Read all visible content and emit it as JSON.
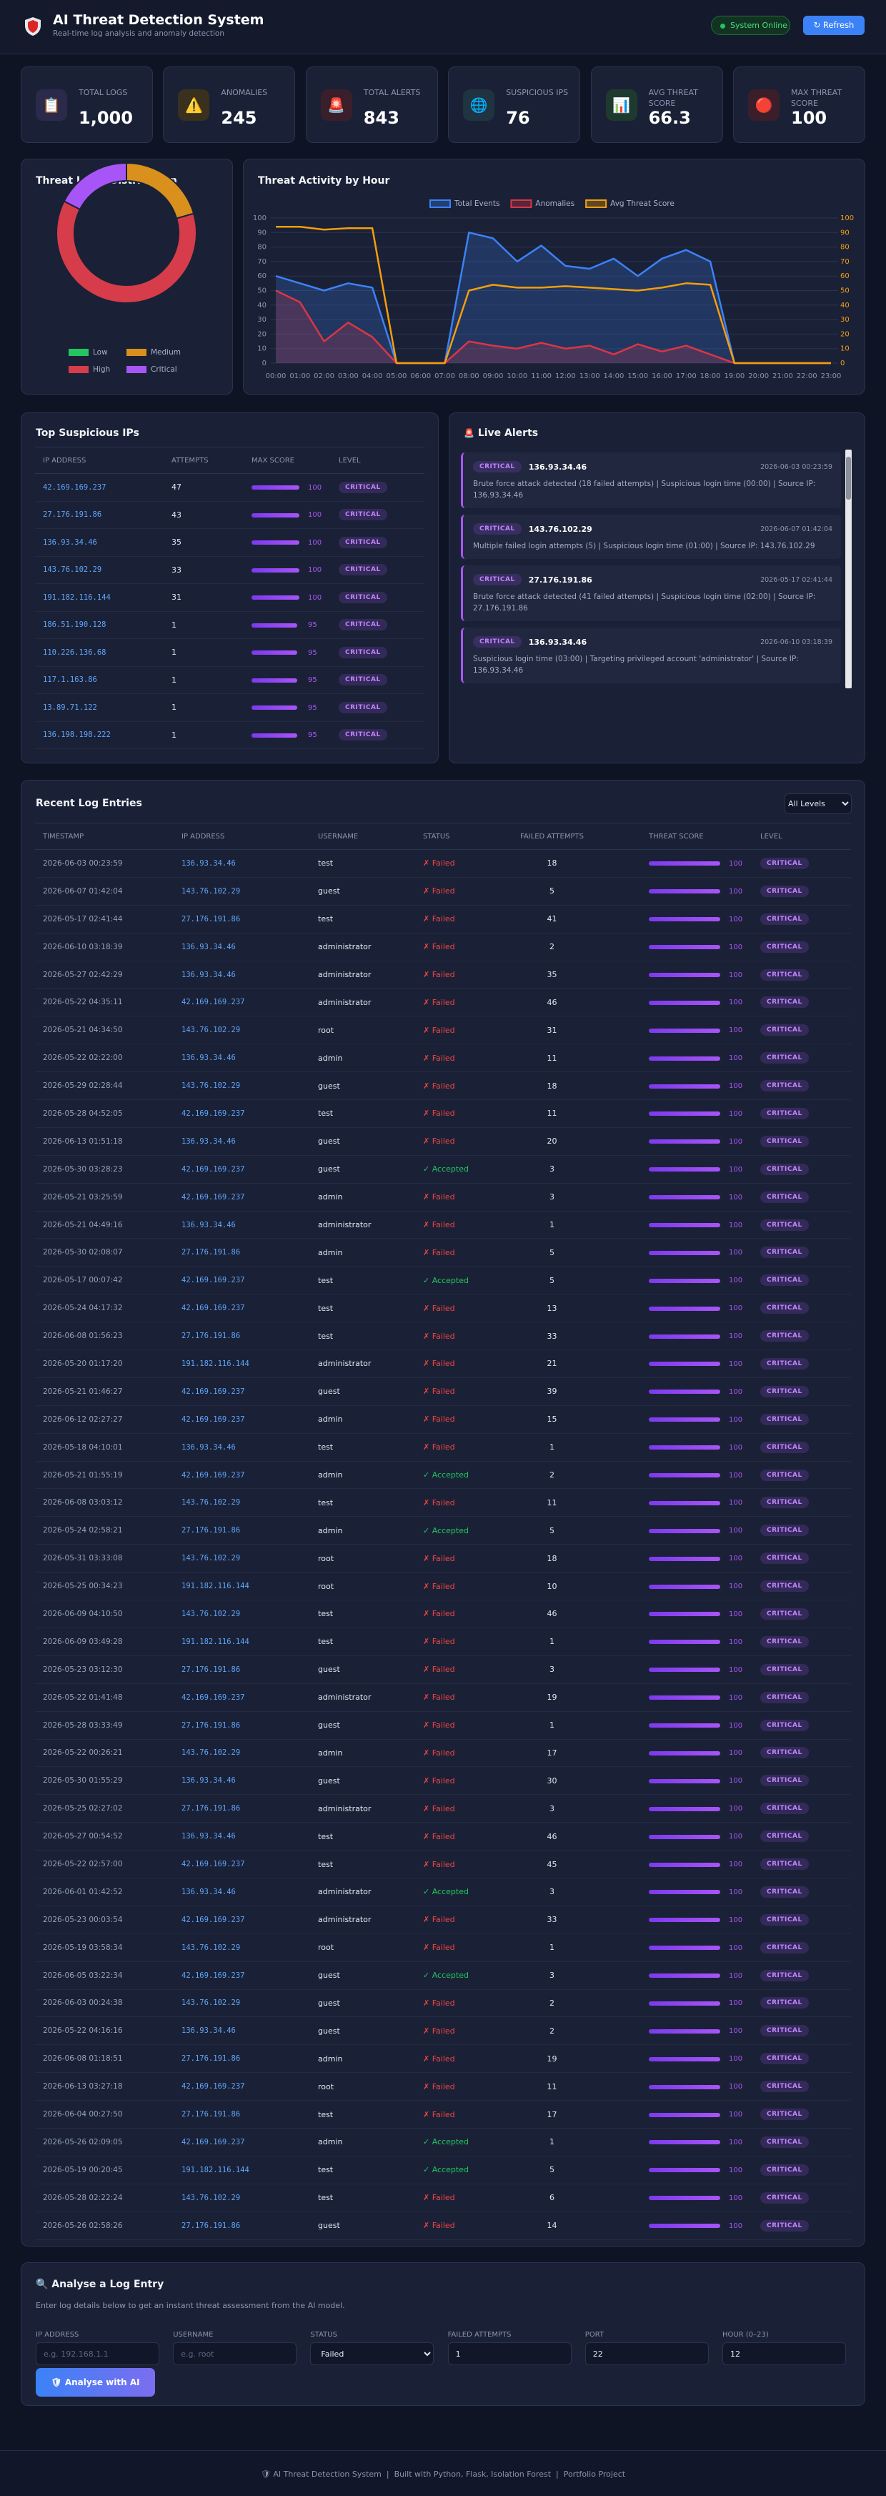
{
  "header": {
    "title": "AI Threat Detection System",
    "subtitle": "Real-time log analysis and anomaly detection",
    "status": "System Online",
    "refresh": "↻ Refresh"
  },
  "stats": [
    {
      "icon": "📋",
      "label": "TOTAL LOGS",
      "value": "1,000",
      "tint": "#2b2a4a"
    },
    {
      "icon": "⚠️",
      "label": "ANOMALIES",
      "value": 245,
      "tint": "#3a301e"
    },
    {
      "icon": "🚨",
      "label": "TOTAL ALERTS",
      "value": 843,
      "tint": "#3a1f2a"
    },
    {
      "icon": "🌐",
      "label": "SUSPICIOUS IPS",
      "value": 76,
      "tint": "#1f3340"
    },
    {
      "icon": "📊",
      "label": "AVG THREAT SCORE",
      "value": 66.3,
      "tint": "#1e3a2e"
    },
    {
      "icon": "🔴",
      "label": "MAX THREAT SCORE",
      "value": 100,
      "tint": "#3a1f2a"
    }
  ],
  "chart_data": [
    {
      "type": "doughnut",
      "title": "Threat Level Distribution",
      "categories": [
        "Low",
        "Medium",
        "High",
        "Critical"
      ],
      "values": [
        0,
        205,
        620,
        175
      ],
      "colors": [
        "#22c55e",
        "#d9901c",
        "#d63c4a",
        "#a855f7"
      ]
    },
    {
      "type": "line",
      "title": "Threat Activity by Hour",
      "categories": [
        "00:00",
        "01:00",
        "02:00",
        "03:00",
        "04:00",
        "05:00",
        "06:00",
        "07:00",
        "08:00",
        "09:00",
        "10:00",
        "11:00",
        "12:00",
        "13:00",
        "14:00",
        "15:00",
        "16:00",
        "17:00",
        "18:00",
        "19:00",
        "20:00",
        "21:00",
        "22:00",
        "23:00"
      ],
      "series": [
        {
          "name": "Total Events",
          "color": "#3b82f6",
          "fill": true,
          "values": [
            60,
            55,
            50,
            55,
            52,
            0,
            0,
            0,
            90,
            86,
            70,
            81,
            67,
            65,
            72,
            60,
            72,
            78,
            70,
            0,
            0,
            0,
            0,
            0
          ]
        },
        {
          "name": "Anomalies",
          "color": "#dc3545",
          "fill": true,
          "values": [
            50,
            42,
            15,
            28,
            18,
            0,
            0,
            0,
            15,
            12,
            10,
            14,
            10,
            12,
            6,
            13,
            8,
            12,
            6,
            0,
            0,
            0,
            0,
            0
          ]
        },
        {
          "name": "Avg Threat Score",
          "color": "#f59e0b",
          "axis": "y2",
          "values": [
            94,
            94,
            92,
            93,
            93,
            0,
            0,
            0,
            50,
            54,
            52,
            52,
            53,
            52,
            51,
            50,
            52,
            55,
            54,
            0,
            0,
            0,
            0,
            0
          ]
        }
      ],
      "ylim": [
        0,
        100
      ],
      "yticks": [
        0,
        10,
        20,
        30,
        40,
        50,
        60,
        70,
        80,
        90,
        100
      ],
      "y2lim": [
        0,
        100
      ],
      "y2ticks": [
        0,
        10,
        20,
        30,
        40,
        50,
        60,
        70,
        80,
        90,
        100
      ],
      "grid": true,
      "legend": "top"
    }
  ],
  "top_ips": {
    "title": "Top Suspicious IPs",
    "columns": [
      "IP ADDRESS",
      "ATTEMPTS",
      "MAX SCORE",
      "LEVEL"
    ],
    "rows": [
      [
        "42.169.169.237",
        47,
        100,
        "CRITICAL"
      ],
      [
        "27.176.191.86",
        43,
        100,
        "CRITICAL"
      ],
      [
        "136.93.34.46",
        35,
        100,
        "CRITICAL"
      ],
      [
        "143.76.102.29",
        33,
        100,
        "CRITICAL"
      ],
      [
        "191.182.116.144",
        31,
        100,
        "CRITICAL"
      ],
      [
        "186.51.190.128",
        1,
        95,
        "CRITICAL"
      ],
      [
        "110.226.136.68",
        1,
        95,
        "CRITICAL"
      ],
      [
        "117.1.163.86",
        1,
        95,
        "CRITICAL"
      ],
      [
        "13.89.71.122",
        1,
        95,
        "CRITICAL"
      ],
      [
        "136.198.198.222",
        1,
        95,
        "CRITICAL"
      ]
    ]
  },
  "alerts": {
    "icon": "🚨",
    "title": "Live Alerts",
    "items": [
      {
        "level": "CRITICAL",
        "ip": "136.93.34.46",
        "time": "2026-06-03 00:23:59",
        "message": "Brute force attack detected (18 failed attempts) | Suspicious login time (00:00) | Source IP: 136.93.34.46"
      },
      {
        "level": "CRITICAL",
        "ip": "143.76.102.29",
        "time": "2026-06-07 01:42:04",
        "message": "Multiple failed login attempts (5) | Suspicious login time (01:00) | Source IP: 143.76.102.29"
      },
      {
        "level": "CRITICAL",
        "ip": "27.176.191.86",
        "time": "2026-05-17 02:41:44",
        "message": "Brute force attack detected (41 failed attempts) | Suspicious login time (02:00) | Source IP: 27.176.191.86"
      },
      {
        "level": "CRITICAL",
        "ip": "136.93.34.46",
        "time": "2026-06-10 03:18:39",
        "message": "Suspicious login time (03:00) | Targeting privileged account 'administrator' | Source IP: 136.93.34.46"
      }
    ]
  },
  "logs": {
    "title": "Recent Log Entries",
    "filter": "All Levels",
    "columns": [
      "TIMESTAMP",
      "IP ADDRESS",
      "USERNAME",
      "STATUS",
      "FAILED ATTEMPTS",
      "THREAT SCORE",
      "LEVEL"
    ],
    "status_colors": {
      "✗ Failed": "#ef4444",
      "✓ Accepted": "#22c55e"
    },
    "rows": [
      [
        "2026-06-03 00:23:59",
        "136.93.34.46",
        "test",
        "✗ Failed",
        18,
        100,
        "CRITICAL"
      ],
      [
        "2026-06-07 01:42:04",
        "143.76.102.29",
        "guest",
        "✗ Failed",
        5,
        100,
        "CRITICAL"
      ],
      [
        "2026-05-17 02:41:44",
        "27.176.191.86",
        "test",
        "✗ Failed",
        41,
        100,
        "CRITICAL"
      ],
      [
        "2026-06-10 03:18:39",
        "136.93.34.46",
        "administrator",
        "✗ Failed",
        2,
        100,
        "CRITICAL"
      ],
      [
        "2026-05-27 02:42:29",
        "136.93.34.46",
        "administrator",
        "✗ Failed",
        35,
        100,
        "CRITICAL"
      ],
      [
        "2026-05-22 04:35:11",
        "42.169.169.237",
        "administrator",
        "✗ Failed",
        46,
        100,
        "CRITICAL"
      ],
      [
        "2026-05-21 04:34:50",
        "143.76.102.29",
        "root",
        "✗ Failed",
        31,
        100,
        "CRITICAL"
      ],
      [
        "2026-05-22 02:22:00",
        "136.93.34.46",
        "admin",
        "✗ Failed",
        11,
        100,
        "CRITICAL"
      ],
      [
        "2026-05-29 02:28:44",
        "143.76.102.29",
        "guest",
        "✗ Failed",
        18,
        100,
        "CRITICAL"
      ],
      [
        "2026-05-28 04:52:05",
        "42.169.169.237",
        "test",
        "✗ Failed",
        11,
        100,
        "CRITICAL"
      ],
      [
        "2026-06-13 01:51:18",
        "136.93.34.46",
        "guest",
        "✗ Failed",
        20,
        100,
        "CRITICAL"
      ],
      [
        "2026-05-30 03:28:23",
        "42.169.169.237",
        "guest",
        "✓ Accepted",
        3,
        100,
        "CRITICAL"
      ],
      [
        "2026-05-21 03:25:59",
        "42.169.169.237",
        "admin",
        "✗ Failed",
        3,
        100,
        "CRITICAL"
      ],
      [
        "2026-05-21 04:49:16",
        "136.93.34.46",
        "administrator",
        "✗ Failed",
        1,
        100,
        "CRITICAL"
      ],
      [
        "2026-05-30 02:08:07",
        "27.176.191.86",
        "admin",
        "✗ Failed",
        5,
        100,
        "CRITICAL"
      ],
      [
        "2026-05-17 00:07:42",
        "42.169.169.237",
        "test",
        "✓ Accepted",
        5,
        100,
        "CRITICAL"
      ],
      [
        "2026-05-24 04:17:32",
        "42.169.169.237",
        "test",
        "✗ Failed",
        13,
        100,
        "CRITICAL"
      ],
      [
        "2026-06-08 01:56:23",
        "27.176.191.86",
        "test",
        "✗ Failed",
        33,
        100,
        "CRITICAL"
      ],
      [
        "2026-05-20 01:17:20",
        "191.182.116.144",
        "administrator",
        "✗ Failed",
        21,
        100,
        "CRITICAL"
      ],
      [
        "2026-05-21 01:46:27",
        "42.169.169.237",
        "guest",
        "✗ Failed",
        39,
        100,
        "CRITICAL"
      ],
      [
        "2026-06-12 02:27:27",
        "42.169.169.237",
        "admin",
        "✗ Failed",
        15,
        100,
        "CRITICAL"
      ],
      [
        "2026-05-18 04:10:01",
        "136.93.34.46",
        "test",
        "✗ Failed",
        1,
        100,
        "CRITICAL"
      ],
      [
        "2026-05-21 01:55:19",
        "42.169.169.237",
        "admin",
        "✓ Accepted",
        2,
        100,
        "CRITICAL"
      ],
      [
        "2026-06-08 03:03:12",
        "143.76.102.29",
        "test",
        "✗ Failed",
        11,
        100,
        "CRITICAL"
      ],
      [
        "2026-05-24 02:58:21",
        "27.176.191.86",
        "admin",
        "✓ Accepted",
        5,
        100,
        "CRITICAL"
      ],
      [
        "2026-05-31 03:33:08",
        "143.76.102.29",
        "root",
        "✗ Failed",
        18,
        100,
        "CRITICAL"
      ],
      [
        "2026-05-25 00:34:23",
        "191.182.116.144",
        "root",
        "✗ Failed",
        10,
        100,
        "CRITICAL"
      ],
      [
        "2026-06-09 04:10:50",
        "143.76.102.29",
        "test",
        "✗ Failed",
        46,
        100,
        "CRITICAL"
      ],
      [
        "2026-06-09 03:49:28",
        "191.182.116.144",
        "test",
        "✗ Failed",
        1,
        100,
        "CRITICAL"
      ],
      [
        "2026-05-23 03:12:30",
        "27.176.191.86",
        "guest",
        "✗ Failed",
        3,
        100,
        "CRITICAL"
      ],
      [
        "2026-05-22 01:41:48",
        "42.169.169.237",
        "administrator",
        "✗ Failed",
        19,
        100,
        "CRITICAL"
      ],
      [
        "2026-05-28 03:33:49",
        "27.176.191.86",
        "guest",
        "✗ Failed",
        1,
        100,
        "CRITICAL"
      ],
      [
        "2026-05-22 00:26:21",
        "143.76.102.29",
        "admin",
        "✗ Failed",
        17,
        100,
        "CRITICAL"
      ],
      [
        "2026-05-30 01:55:29",
        "136.93.34.46",
        "guest",
        "✗ Failed",
        30,
        100,
        "CRITICAL"
      ],
      [
        "2026-05-25 02:27:02",
        "27.176.191.86",
        "administrator",
        "✗ Failed",
        3,
        100,
        "CRITICAL"
      ],
      [
        "2026-05-27 00:54:52",
        "136.93.34.46",
        "test",
        "✗ Failed",
        46,
        100,
        "CRITICAL"
      ],
      [
        "2026-05-22 02:57:00",
        "42.169.169.237",
        "test",
        "✗ Failed",
        45,
        100,
        "CRITICAL"
      ],
      [
        "2026-06-01 01:42:52",
        "136.93.34.46",
        "administrator",
        "✓ Accepted",
        3,
        100,
        "CRITICAL"
      ],
      [
        "2026-05-23 00:03:54",
        "42.169.169.237",
        "administrator",
        "✗ Failed",
        33,
        100,
        "CRITICAL"
      ],
      [
        "2026-05-19 03:58:34",
        "143.76.102.29",
        "root",
        "✗ Failed",
        1,
        100,
        "CRITICAL"
      ],
      [
        "2026-06-05 03:22:34",
        "42.169.169.237",
        "guest",
        "✓ Accepted",
        3,
        100,
        "CRITICAL"
      ],
      [
        "2026-06-03 00:24:38",
        "143.76.102.29",
        "guest",
        "✗ Failed",
        2,
        100,
        "CRITICAL"
      ],
      [
        "2026-05-22 04:16:16",
        "136.93.34.46",
        "guest",
        "✗ Failed",
        2,
        100,
        "CRITICAL"
      ],
      [
        "2026-06-08 01:18:51",
        "27.176.191.86",
        "admin",
        "✗ Failed",
        19,
        100,
        "CRITICAL"
      ],
      [
        "2026-06-13 03:27:18",
        "42.169.169.237",
        "root",
        "✗ Failed",
        11,
        100,
        "CRITICAL"
      ],
      [
        "2026-06-04 00:27:50",
        "27.176.191.86",
        "test",
        "✗ Failed",
        17,
        100,
        "CRITICAL"
      ],
      [
        "2026-05-26 02:09:05",
        "42.169.169.237",
        "admin",
        "✓ Accepted",
        1,
        100,
        "CRITICAL"
      ],
      [
        "2026-05-19 00:20:45",
        "191.182.116.144",
        "test",
        "✓ Accepted",
        5,
        100,
        "CRITICAL"
      ],
      [
        "2026-05-28 02:22:24",
        "143.76.102.29",
        "test",
        "✗ Failed",
        6,
        100,
        "CRITICAL"
      ],
      [
        "2026-05-26 02:58:26",
        "27.176.191.86",
        "guest",
        "✗ Failed",
        14,
        100,
        "CRITICAL"
      ]
    ]
  },
  "form": {
    "title": "🔍 Analyse a Log Entry",
    "description": "Enter log details below to get an instant threat assessment from the AI model.",
    "fields": [
      {
        "label": "IP ADDRESS",
        "placeholder": "e.g. 192.168.1.1"
      },
      {
        "label": "USERNAME",
        "placeholder": "e.g. root"
      },
      {
        "label": "STATUS",
        "value": "Failed"
      },
      {
        "label": "FAILED ATTEMPTS",
        "value": "1"
      },
      {
        "label": "PORT",
        "value": "22"
      },
      {
        "label": "HOUR (0–23)",
        "value": "12"
      }
    ],
    "button": "🛡 Analyse with AI"
  },
  "footer": "🛡 AI Threat Detection System  |  Built with Python, Flask, Isolation Forest  |  Portfolio Project"
}
